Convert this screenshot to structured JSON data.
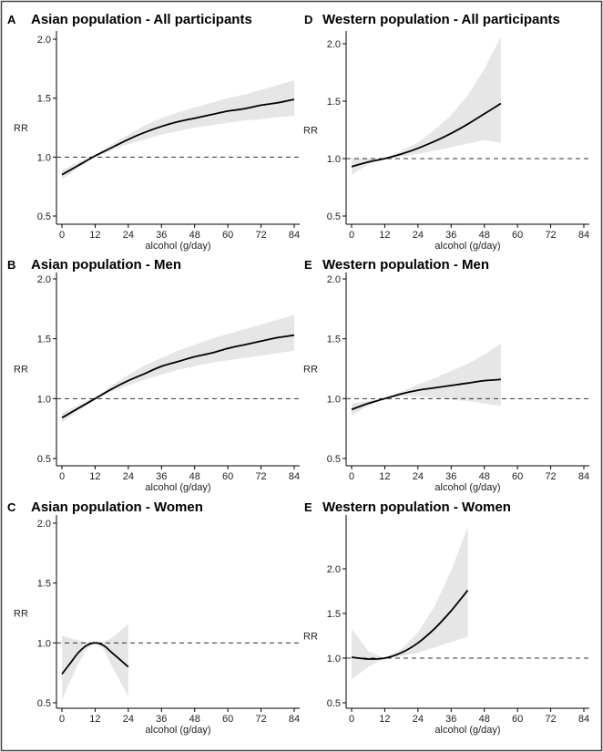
{
  "figure": {
    "background": "#ffffff",
    "frame_color": "#444444",
    "band_color": "#e6e6e6",
    "line_color": "#000000",
    "ref_line_color": "#333333"
  },
  "chart_data": [
    {
      "id": "A",
      "letter": "A",
      "title": "Asian population - All participants",
      "type": "line",
      "xlabel": "alcohol (g/day)",
      "ylabel": "RR",
      "xlim": [
        0,
        84
      ],
      "ylim": [
        0.5,
        2.0
      ],
      "xticks": [
        "0",
        "12",
        "24",
        "36",
        "48",
        "60",
        "72",
        "84"
      ],
      "yticks": [
        "0.5",
        "1.0",
        "1.5",
        "2.0"
      ],
      "reference_line": 1.0,
      "series": [
        {
          "name": "RR",
          "x": [
            0,
            6,
            12,
            18,
            24,
            30,
            36,
            42,
            48,
            54,
            60,
            66,
            72,
            78,
            84
          ],
          "y": [
            0.85,
            0.93,
            1.01,
            1.08,
            1.15,
            1.21,
            1.26,
            1.3,
            1.33,
            1.36,
            1.39,
            1.41,
            1.44,
            1.46,
            1.49
          ],
          "lower": [
            0.81,
            0.91,
            1.0,
            1.06,
            1.11,
            1.15,
            1.19,
            1.22,
            1.25,
            1.27,
            1.29,
            1.31,
            1.32,
            1.34,
            1.35
          ],
          "upper": [
            0.89,
            0.96,
            1.02,
            1.11,
            1.19,
            1.27,
            1.33,
            1.38,
            1.42,
            1.46,
            1.5,
            1.53,
            1.57,
            1.61,
            1.65
          ]
        }
      ]
    },
    {
      "id": "D",
      "letter": "D",
      "title": "Western population - All participants",
      "type": "line",
      "xlabel": "alcohol (g/day)",
      "ylabel": "RR",
      "xlim": [
        0,
        84
      ],
      "ylim": [
        0.5,
        2.0
      ],
      "xticks": [
        "0",
        "12",
        "24",
        "36",
        "48",
        "60",
        "72",
        "84"
      ],
      "yticks": [
        "0.5",
        "1.0",
        "1.5",
        "2.0"
      ],
      "reference_line": 1.0,
      "series": [
        {
          "name": "RR",
          "x": [
            0,
            6,
            12,
            18,
            24,
            30,
            36,
            42,
            48,
            54
          ],
          "y": [
            0.93,
            0.97,
            1.0,
            1.04,
            1.09,
            1.15,
            1.22,
            1.3,
            1.39,
            1.48
          ],
          "lower": [
            0.86,
            0.95,
            1.0,
            1.02,
            1.04,
            1.07,
            1.1,
            1.13,
            1.16,
            1.14
          ],
          "upper": [
            1.0,
            1.0,
            1.0,
            1.07,
            1.14,
            1.25,
            1.38,
            1.55,
            1.78,
            2.06
          ]
        }
      ]
    },
    {
      "id": "B",
      "letter": "B",
      "title": "Asian population - Men",
      "type": "line",
      "xlabel": "alcohol (g/day)",
      "ylabel": "RR",
      "xlim": [
        0,
        84
      ],
      "ylim": [
        0.5,
        2.0
      ],
      "xticks": [
        "0",
        "12",
        "24",
        "36",
        "48",
        "60",
        "72",
        "84"
      ],
      "yticks": [
        "0.5",
        "1.0",
        "1.5",
        "2.0"
      ],
      "reference_line": 1.0,
      "series": [
        {
          "name": "RR",
          "x": [
            0,
            6,
            12,
            18,
            24,
            30,
            36,
            42,
            48,
            54,
            60,
            66,
            72,
            78,
            84
          ],
          "y": [
            0.84,
            0.92,
            1.0,
            1.08,
            1.15,
            1.21,
            1.27,
            1.31,
            1.35,
            1.38,
            1.42,
            1.45,
            1.48,
            1.51,
            1.53
          ],
          "lower": [
            0.8,
            0.9,
            0.99,
            1.06,
            1.11,
            1.16,
            1.2,
            1.24,
            1.27,
            1.3,
            1.32,
            1.34,
            1.36,
            1.38,
            1.4
          ],
          "upper": [
            0.88,
            0.95,
            1.01,
            1.11,
            1.2,
            1.28,
            1.34,
            1.4,
            1.45,
            1.5,
            1.54,
            1.58,
            1.62,
            1.66,
            1.7
          ]
        }
      ]
    },
    {
      "id": "E1",
      "letter": "E",
      "title": "Western population - Men",
      "type": "line",
      "xlabel": "alcohol (g/day)",
      "ylabel": "RR",
      "xlim": [
        0,
        84
      ],
      "ylim": [
        0.5,
        2.0
      ],
      "xticks": [
        "0",
        "12",
        "24",
        "36",
        "48",
        "60",
        "72",
        "84"
      ],
      "yticks": [
        "0.5",
        "1.0",
        "1.5",
        "2.0"
      ],
      "reference_line": 1.0,
      "series": [
        {
          "name": "RR",
          "x": [
            0,
            6,
            12,
            18,
            24,
            30,
            36,
            42,
            48,
            54
          ],
          "y": [
            0.91,
            0.96,
            1.0,
            1.04,
            1.07,
            1.09,
            1.11,
            1.13,
            1.15,
            1.16
          ],
          "lower": [
            0.86,
            0.94,
            1.0,
            1.02,
            1.02,
            1.01,
            0.99,
            0.98,
            0.96,
            0.94
          ],
          "upper": [
            0.96,
            0.98,
            1.0,
            1.06,
            1.12,
            1.17,
            1.23,
            1.29,
            1.37,
            1.46
          ]
        }
      ]
    },
    {
      "id": "C",
      "letter": "C",
      "title": "Asian population - Women",
      "type": "line",
      "xlabel": "alcohol (g/day)",
      "ylabel": "RR",
      "xlim": [
        0,
        84
      ],
      "ylim": [
        0.5,
        2.0
      ],
      "xticks": [
        "0",
        "12",
        "24",
        "36",
        "48",
        "60",
        "72",
        "84"
      ],
      "yticks": [
        "0.5",
        "1.0",
        "1.5",
        "2.0"
      ],
      "reference_line": 1.0,
      "series": [
        {
          "name": "RR",
          "x": [
            0,
            3,
            6,
            9,
            12,
            15,
            18,
            21,
            24
          ],
          "y": [
            0.74,
            0.83,
            0.92,
            0.98,
            1.0,
            0.98,
            0.92,
            0.86,
            0.8
          ],
          "lower": [
            0.52,
            0.68,
            0.83,
            0.95,
            1.0,
            0.95,
            0.81,
            0.68,
            0.55
          ],
          "upper": [
            1.06,
            1.04,
            1.02,
            1.01,
            1.0,
            1.01,
            1.04,
            1.1,
            1.16
          ]
        }
      ]
    },
    {
      "id": "E2",
      "letter": "E",
      "title": "Western population - Women",
      "type": "line",
      "xlabel": "alcohol (g/day)",
      "ylabel": "RR",
      "xlim": [
        0,
        84
      ],
      "ylim": [
        0.5,
        2.5
      ],
      "xticks": [
        "0",
        "12",
        "24",
        "36",
        "48",
        "60",
        "72",
        "84"
      ],
      "yticks": [
        "0.5",
        "1.0",
        "1.5",
        "2.0"
      ],
      "reference_line": 1.0,
      "series": [
        {
          "name": "RR",
          "x": [
            0,
            6,
            12,
            18,
            24,
            30,
            36,
            42
          ],
          "y": [
            1.01,
            0.99,
            1.0,
            1.06,
            1.17,
            1.33,
            1.53,
            1.76
          ],
          "lower": [
            0.76,
            0.9,
            1.0,
            1.02,
            1.06,
            1.12,
            1.18,
            1.24
          ],
          "upper": [
            1.33,
            1.08,
            1.0,
            1.1,
            1.29,
            1.58,
            1.98,
            2.47
          ]
        }
      ]
    }
  ]
}
